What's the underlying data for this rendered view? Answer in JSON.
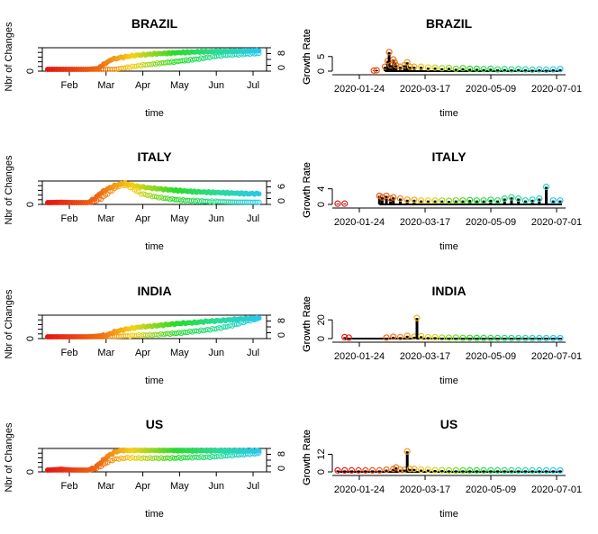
{
  "chart_data": [
    {
      "type": "scatter",
      "title": "BRAZIL",
      "xlabel": "time",
      "ylabel": "Nbr of Changes",
      "ylabel_right": "Growth Rate",
      "x_ticks": [
        "Feb",
        "Mar",
        "Apr",
        "May",
        "Jun",
        "Jul"
      ],
      "y_ticks_left": [
        "0"
      ],
      "y_ticks_right": [
        "0",
        "8"
      ],
      "series": [
        {
          "values": [
            [
              0,
              0
            ],
            [
              10,
              0
            ],
            [
              20,
              0
            ],
            [
              30,
              0
            ],
            [
              38,
              0.05
            ],
            [
              42,
              0.25
            ],
            [
              48,
              0.5
            ],
            [
              55,
              0.6
            ],
            [
              65,
              0.7
            ],
            [
              80,
              0.78
            ],
            [
              100,
              0.85
            ],
            [
              120,
              0.9
            ],
            [
              140,
              0.92
            ],
            [
              150,
              0.93
            ],
            [
              160,
              0.95
            ]
          ]
        },
        {
          "values": [
            [
              0,
              0
            ],
            [
              10,
              0
            ],
            [
              20,
              0
            ],
            [
              30,
              0
            ],
            [
              40,
              0
            ],
            [
              50,
              0
            ],
            [
              55,
              0.05
            ],
            [
              70,
              0.2
            ],
            [
              90,
              0.35
            ],
            [
              110,
              0.5
            ],
            [
              125,
              0.65
            ],
            [
              135,
              0.72
            ],
            [
              145,
              0.75
            ],
            [
              155,
              0.8
            ],
            [
              160,
              0.78
            ]
          ]
        }
      ]
    },
    {
      "type": "bar",
      "title": "BRAZIL",
      "xlabel": "time",
      "ylabel": "Growth Rate",
      "x_ticks": [
        "2020-01-24",
        "2020-03-17",
        "2020-05-09",
        "2020-07-01"
      ],
      "y_ticks": [
        "0",
        "5"
      ],
      "ylim": [
        0,
        8
      ],
      "values": [
        [
          26,
          0.2
        ],
        [
          28,
          0.3
        ],
        [
          34,
          1.5
        ],
        [
          36,
          3.5
        ],
        [
          37,
          6.5
        ],
        [
          38,
          2
        ],
        [
          40,
          4
        ],
        [
          41,
          3
        ],
        [
          42,
          2
        ],
        [
          45,
          1.5
        ],
        [
          48,
          2
        ],
        [
          50,
          3
        ],
        [
          52,
          1.5
        ],
        [
          55,
          1.5
        ],
        [
          60,
          1.5
        ],
        [
          65,
          1.2
        ],
        [
          70,
          1.2
        ],
        [
          75,
          1
        ],
        [
          80,
          1.1
        ],
        [
          85,
          0.8
        ],
        [
          90,
          1
        ],
        [
          95,
          0.8
        ],
        [
          100,
          0.8
        ],
        [
          105,
          0.7
        ],
        [
          110,
          0.8
        ],
        [
          115,
          0.6
        ],
        [
          120,
          0.7
        ],
        [
          125,
          0.6
        ],
        [
          130,
          0.7
        ],
        [
          135,
          0.6
        ],
        [
          140,
          0.5
        ],
        [
          145,
          0.6
        ],
        [
          150,
          0.5
        ],
        [
          155,
          0.6
        ],
        [
          160,
          0.7
        ]
      ]
    },
    {
      "type": "scatter",
      "title": "ITALY",
      "xlabel": "time",
      "ylabel": "Nbr of Changes",
      "ylabel_right": "Growth Rate",
      "x_ticks": [
        "Feb",
        "Mar",
        "Apr",
        "May",
        "Jun",
        "Jul"
      ],
      "y_ticks_left": [
        "0"
      ],
      "y_ticks_right": [
        "0",
        "6"
      ],
      "series": [
        {
          "values": [
            [
              0,
              0
            ],
            [
              10,
              0.02
            ],
            [
              20,
              0
            ],
            [
              30,
              0
            ],
            [
              35,
              0.2
            ],
            [
              40,
              0.5
            ],
            [
              45,
              0.7
            ],
            [
              50,
              0.85
            ],
            [
              55,
              0.95
            ],
            [
              58,
              1
            ],
            [
              60,
              0.95
            ],
            [
              65,
              0.85
            ],
            [
              75,
              0.75
            ],
            [
              90,
              0.65
            ],
            [
              110,
              0.55
            ],
            [
              130,
              0.5
            ],
            [
              150,
              0.45
            ],
            [
              160,
              0.45
            ]
          ]
        },
        {
          "values": [
            [
              0,
              0
            ],
            [
              10,
              0
            ],
            [
              20,
              0
            ],
            [
              30,
              0
            ],
            [
              35,
              0.05
            ],
            [
              40,
              0.2
            ],
            [
              45,
              0.45
            ],
            [
              50,
              0.7
            ],
            [
              55,
              0.9
            ],
            [
              60,
              0.85
            ],
            [
              65,
              0.65
            ],
            [
              70,
              0.45
            ],
            [
              80,
              0.3
            ],
            [
              90,
              0.2
            ],
            [
              100,
              0.12
            ],
            [
              120,
              0.06
            ],
            [
              140,
              0.03
            ],
            [
              160,
              0.02
            ]
          ]
        }
      ]
    },
    {
      "type": "bar",
      "title": "ITALY",
      "xlabel": "time",
      "ylabel": "Growth Rate",
      "x_ticks": [
        "2020-01-24",
        "2020-03-17",
        "2020-05-09",
        "2020-07-01"
      ],
      "y_ticks": [
        "0",
        "4"
      ],
      "ylim": [
        0,
        6
      ],
      "values": [
        [
          0,
          0.2
        ],
        [
          5,
          0.2
        ],
        [
          30,
          2.2
        ],
        [
          32,
          1.8
        ],
        [
          35,
          2.2
        ],
        [
          38,
          1.5
        ],
        [
          40,
          1.8
        ],
        [
          45,
          1.5
        ],
        [
          50,
          1.2
        ],
        [
          55,
          1.2
        ],
        [
          60,
          1
        ],
        [
          65,
          1
        ],
        [
          70,
          1
        ],
        [
          75,
          1
        ],
        [
          80,
          0.9
        ],
        [
          85,
          1
        ],
        [
          90,
          1
        ],
        [
          95,
          1.1
        ],
        [
          100,
          1
        ],
        [
          105,
          1
        ],
        [
          110,
          1.2
        ],
        [
          115,
          1
        ],
        [
          120,
          1.5
        ],
        [
          125,
          1.8
        ],
        [
          130,
          1.5
        ],
        [
          135,
          1
        ],
        [
          140,
          1.2
        ],
        [
          145,
          1.5
        ],
        [
          150,
          4.5
        ],
        [
          155,
          1
        ],
        [
          160,
          1
        ]
      ]
    },
    {
      "type": "scatter",
      "title": "INDIA",
      "xlabel": "time",
      "ylabel": "Nbr of Changes",
      "ylabel_right": "Growth Rate",
      "x_ticks": [
        "Feb",
        "Mar",
        "Apr",
        "May",
        "Jun",
        "Jul"
      ],
      "y_ticks_left": [
        "0"
      ],
      "y_ticks_right": [
        "0",
        "8"
      ],
      "series": [
        {
          "values": [
            [
              0,
              0
            ],
            [
              10,
              0
            ],
            [
              20,
              0
            ],
            [
              30,
              0
            ],
            [
              40,
              0.05
            ],
            [
              45,
              0.1
            ],
            [
              50,
              0.25
            ],
            [
              60,
              0.4
            ],
            [
              70,
              0.5
            ],
            [
              80,
              0.55
            ],
            [
              90,
              0.62
            ],
            [
              100,
              0.68
            ],
            [
              110,
              0.72
            ],
            [
              120,
              0.78
            ],
            [
              130,
              0.82
            ],
            [
              140,
              0.88
            ],
            [
              150,
              0.92
            ],
            [
              160,
              0.96
            ]
          ]
        },
        {
          "values": [
            [
              0,
              0
            ],
            [
              10,
              0
            ],
            [
              20,
              0
            ],
            [
              30,
              0
            ],
            [
              40,
              0
            ],
            [
              50,
              0.02
            ],
            [
              60,
              0.05
            ],
            [
              70,
              0.08
            ],
            [
              80,
              0.1
            ],
            [
              90,
              0.15
            ],
            [
              100,
              0.2
            ],
            [
              110,
              0.28
            ],
            [
              120,
              0.35
            ],
            [
              130,
              0.45
            ],
            [
              140,
              0.6
            ],
            [
              150,
              0.8
            ],
            [
              160,
              0.95
            ]
          ]
        }
      ]
    },
    {
      "type": "bar",
      "title": "INDIA",
      "xlabel": "time",
      "ylabel": "Growth Rate",
      "x_ticks": [
        "2020-01-24",
        "2020-03-17",
        "2020-05-09",
        "2020-07-01"
      ],
      "y_ticks": [
        "0",
        "20"
      ],
      "ylim": [
        0,
        25
      ],
      "values": [
        [
          5,
          1.5
        ],
        [
          8,
          1
        ],
        [
          35,
          1
        ],
        [
          40,
          2
        ],
        [
          45,
          1.5
        ],
        [
          50,
          3
        ],
        [
          55,
          2
        ],
        [
          57,
          22
        ],
        [
          60,
          2.5
        ],
        [
          65,
          1.5
        ],
        [
          70,
          1.5
        ],
        [
          75,
          1
        ],
        [
          80,
          1
        ],
        [
          85,
          1
        ],
        [
          90,
          0.8
        ],
        [
          95,
          0.8
        ],
        [
          100,
          0.7
        ],
        [
          105,
          0.7
        ],
        [
          110,
          0.6
        ],
        [
          115,
          0.6
        ],
        [
          120,
          0.6
        ],
        [
          125,
          0.5
        ],
        [
          130,
          0.5
        ],
        [
          135,
          0.5
        ],
        [
          140,
          0.5
        ],
        [
          145,
          0.5
        ],
        [
          150,
          0.5
        ],
        [
          155,
          0.5
        ],
        [
          160,
          0.5
        ]
      ]
    },
    {
      "type": "scatter",
      "title": "US",
      "xlabel": "time",
      "ylabel": "Nbr of Changes",
      "ylabel_right": "Growth Rate",
      "x_ticks": [
        "Feb",
        "Mar",
        "Apr",
        "May",
        "Jun",
        "Jul"
      ],
      "y_ticks_left": [
        "0"
      ],
      "y_ticks_right": [
        "0",
        "8"
      ],
      "series": [
        {
          "values": [
            [
              0,
              0
            ],
            [
              5,
              0.02
            ],
            [
              10,
              0.05
            ],
            [
              15,
              0.02
            ],
            [
              20,
              0
            ],
            [
              30,
              0
            ],
            [
              35,
              0.1
            ],
            [
              40,
              0.4
            ],
            [
              45,
              0.7
            ],
            [
              50,
              0.9
            ],
            [
              55,
              1
            ],
            [
              70,
              1
            ],
            [
              90,
              1
            ],
            [
              110,
              0.98
            ],
            [
              130,
              0.98
            ],
            [
              150,
              0.97
            ],
            [
              160,
              0.97
            ]
          ]
        },
        {
          "values": [
            [
              0,
              0
            ],
            [
              10,
              0
            ],
            [
              20,
              0
            ],
            [
              30,
              0
            ],
            [
              35,
              0.05
            ],
            [
              40,
              0.2
            ],
            [
              45,
              0.4
            ],
            [
              50,
              0.55
            ],
            [
              60,
              0.62
            ],
            [
              70,
              0.6
            ],
            [
              80,
              0.6
            ],
            [
              90,
              0.6
            ],
            [
              100,
              0.62
            ],
            [
              110,
              0.64
            ],
            [
              120,
              0.65
            ],
            [
              130,
              0.7
            ],
            [
              140,
              0.75
            ],
            [
              150,
              0.8
            ],
            [
              160,
              0.85
            ]
          ]
        }
      ]
    },
    {
      "type": "bar",
      "title": "US",
      "xlabel": "time",
      "ylabel": "Growth Rate",
      "x_ticks": [
        "2020-01-24",
        "2020-03-17",
        "2020-05-09",
        "2020-07-01"
      ],
      "y_ticks": [
        "0",
        "12"
      ],
      "ylim": [
        0,
        16
      ],
      "values": [
        [
          0,
          1
        ],
        [
          5,
          1
        ],
        [
          10,
          1
        ],
        [
          15,
          1
        ],
        [
          20,
          1
        ],
        [
          25,
          1
        ],
        [
          30,
          1
        ],
        [
          35,
          1.5
        ],
        [
          40,
          2
        ],
        [
          42,
          3
        ],
        [
          45,
          1.5
        ],
        [
          48,
          1.5
        ],
        [
          50,
          14
        ],
        [
          52,
          2
        ],
        [
          55,
          2
        ],
        [
          60,
          1.5
        ],
        [
          65,
          1.5
        ],
        [
          70,
          1.2
        ],
        [
          75,
          1.2
        ],
        [
          80,
          1
        ],
        [
          85,
          1
        ],
        [
          90,
          1
        ],
        [
          95,
          1
        ],
        [
          100,
          1
        ],
        [
          105,
          1
        ],
        [
          110,
          1
        ],
        [
          115,
          1
        ],
        [
          120,
          1
        ],
        [
          125,
          1
        ],
        [
          130,
          1
        ],
        [
          135,
          1
        ],
        [
          140,
          1
        ],
        [
          145,
          1
        ],
        [
          150,
          1
        ],
        [
          155,
          1
        ],
        [
          160,
          1
        ]
      ]
    }
  ]
}
